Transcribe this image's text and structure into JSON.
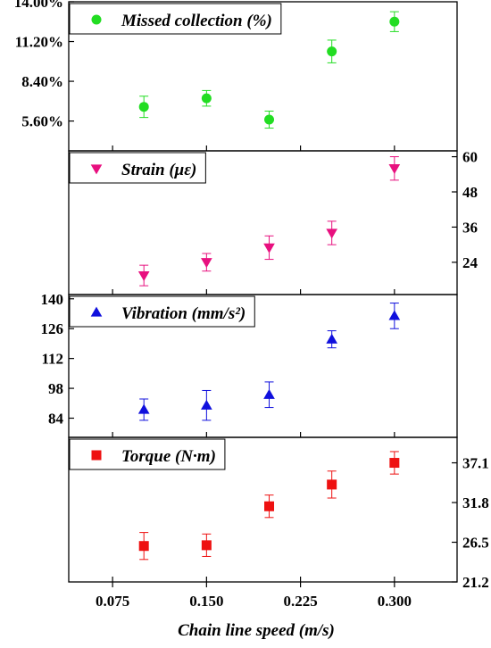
{
  "chart_data": {
    "type": "scatter",
    "xlabel": "Chain line speed (m/s)",
    "x_ticks": [
      "0.075",
      "0.150",
      "0.225",
      "0.300"
    ],
    "x_tick_values": [
      0.075,
      0.15,
      0.225,
      0.3
    ],
    "xlim": [
      0.04,
      0.35
    ],
    "x": [
      0.1,
      0.15,
      0.2,
      0.25,
      0.3
    ],
    "panels": [
      {
        "name": "Missed collection (%)",
        "axis_side": "left",
        "marker": "circle",
        "color": "#22dd22",
        "ylim": [
          3.5,
          14.0
        ],
        "y_tick_values": [
          5.6,
          8.4,
          11.2,
          14.0
        ],
        "y_ticks": [
          "5.60%",
          "8.40%",
          "11.20%",
          "14.00%"
        ],
        "values": [
          6.6,
          7.2,
          5.7,
          10.5,
          12.6
        ],
        "errors": [
          0.75,
          0.55,
          0.6,
          0.8,
          0.7
        ]
      },
      {
        "name": "Strain (με)",
        "axis_side": "right",
        "marker": "triangle-down",
        "color": "#e8107f",
        "ylim": [
          13,
          62
        ],
        "y_tick_values": [
          24,
          36,
          48,
          60
        ],
        "y_ticks": [
          "24",
          "36",
          "48",
          "60"
        ],
        "values": [
          19.5,
          24,
          29,
          34,
          56
        ],
        "errors": [
          3.5,
          3,
          4,
          4,
          4
        ]
      },
      {
        "name": "Vibration (mm/s²)",
        "axis_side": "left",
        "marker": "triangle-up",
        "color": "#1010dd",
        "ylim": [
          75,
          142
        ],
        "y_tick_values": [
          84,
          98,
          112,
          126,
          140
        ],
        "y_ticks": [
          "84",
          "98",
          "112",
          "126",
          "140"
        ],
        "values": [
          88,
          90,
          95,
          121,
          132
        ],
        "errors": [
          5,
          7,
          6,
          4,
          6
        ]
      },
      {
        "name": "Torque (N·m)",
        "axis_side": "right",
        "marker": "square",
        "color": "#ee1111",
        "ylim": [
          21.2,
          40.5
        ],
        "y_tick_values": [
          21.2,
          26.5,
          31.8,
          37.1
        ],
        "y_ticks": [
          "21.2",
          "26.5",
          "31.8",
          "37.1"
        ],
        "values": [
          26.0,
          26.1,
          31.3,
          34.2,
          37.1
        ],
        "errors": [
          1.8,
          1.5,
          1.5,
          1.8,
          1.5
        ]
      }
    ]
  }
}
